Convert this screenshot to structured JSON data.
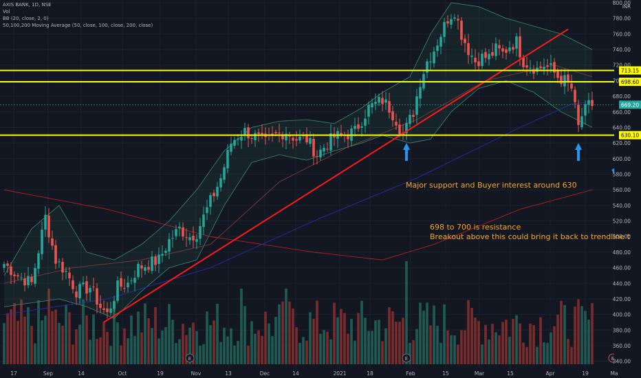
{
  "legend": {
    "symbol": "AXIS BANK, 1D, NSE",
    "volume": "Vol",
    "bb": "BB (20, close, 2, 0)",
    "ma": "50,100,200 Moving Average (50, close, 100, close, 200, close)"
  },
  "annotations": {
    "support": "Major support and Buyer interest around 630",
    "resistance_1": "698 to 700 is resistance",
    "resistance_2": "Breakout above this could bring it back to trendline t"
  },
  "colors": {
    "background": "#131722",
    "up": "#26a69a",
    "down": "#ef5350",
    "level": "#ffff00",
    "trendline": "#ff1a1a",
    "annotation": "#f5a623",
    "arrow": "#2196f3",
    "bb": "#3a8a6e",
    "ma50": "#7a3a3a",
    "ma100": "#2a2aa8",
    "ma200": "#b02020",
    "last_price": "#26a69a"
  },
  "chart_data": {
    "type": "candlestick",
    "ylim": [
      330,
      800
    ],
    "y_ticks": [
      340,
      360,
      380,
      400,
      420,
      440,
      460,
      480,
      500,
      520,
      540,
      560,
      580,
      600,
      620,
      640,
      660,
      680,
      700,
      720,
      740,
      760,
      780,
      800
    ],
    "x_ticks": [
      "17",
      "Sep",
      "14",
      "Oct",
      "19",
      "Nov",
      "13",
      "Dec",
      "14",
      "2021",
      "18",
      "Feb",
      "15",
      "Mar",
      "15",
      "Apr",
      "19",
      "Ma"
    ],
    "axis_unit": "INR",
    "session_count": 172,
    "price_labels": {
      "upper_resistance": "713.15",
      "resistance": "698.60",
      "last": "669.20",
      "support": "630.10"
    },
    "levels": [
      713.15,
      698.6,
      630.1
    ],
    "last_price": 669.2,
    "trendline": {
      "from": {
        "session": 29,
        "price": 390
      },
      "to": {
        "session": 164,
        "price": 766
      }
    },
    "events": [
      {
        "session": 54,
        "label": "E"
      },
      {
        "session": 117,
        "label": "E"
      },
      {
        "session": 177,
        "label": "E"
      }
    ],
    "arrows_at_sessions": [
      117,
      167,
      179
    ],
    "anchors": [
      [
        0,
        465
      ],
      [
        4,
        450
      ],
      [
        8,
        440
      ],
      [
        12,
        525
      ],
      [
        15,
        470
      ],
      [
        18,
        455
      ],
      [
        21,
        430
      ],
      [
        25,
        435
      ],
      [
        28,
        410
      ],
      [
        30,
        400
      ],
      [
        33,
        435
      ],
      [
        36,
        440
      ],
      [
        39,
        460
      ],
      [
        42,
        465
      ],
      [
        45,
        470
      ],
      [
        48,
        495
      ],
      [
        51,
        510
      ],
      [
        54,
        500
      ],
      [
        56,
        505
      ],
      [
        60,
        545
      ],
      [
        63,
        575
      ],
      [
        66,
        620
      ],
      [
        68,
        630
      ],
      [
        70,
        635
      ],
      [
        73,
        628
      ],
      [
        76,
        620
      ],
      [
        79,
        630
      ],
      [
        82,
        635
      ],
      [
        85,
        625
      ],
      [
        88,
        625
      ],
      [
        91,
        605
      ],
      [
        93,
        615
      ],
      [
        96,
        628
      ],
      [
        99,
        630
      ],
      [
        102,
        635
      ],
      [
        104,
        650
      ],
      [
        106,
        665
      ],
      [
        108,
        670
      ],
      [
        110,
        675
      ],
      [
        112,
        665
      ],
      [
        114,
        650
      ],
      [
        116,
        630
      ],
      [
        117,
        640
      ],
      [
        119,
        660
      ],
      [
        121,
        700
      ],
      [
        123,
        725
      ],
      [
        125,
        740
      ],
      [
        127,
        760
      ],
      [
        129,
        780
      ],
      [
        131,
        790
      ],
      [
        133,
        760
      ],
      [
        135,
        740
      ],
      [
        137,
        725
      ],
      [
        139,
        730
      ],
      [
        141,
        730
      ],
      [
        143,
        740
      ],
      [
        145,
        735
      ],
      [
        147,
        745
      ],
      [
        149,
        750
      ],
      [
        151,
        725
      ],
      [
        153,
        720
      ],
      [
        155,
        715
      ],
      [
        157,
        720
      ],
      [
        159,
        715
      ],
      [
        161,
        705
      ],
      [
        163,
        700
      ],
      [
        165,
        690
      ],
      [
        167,
        640
      ],
      [
        168,
        655
      ],
      [
        170,
        668
      ],
      [
        171,
        669
      ]
    ],
    "bb_upper_anchors": [
      [
        0,
        450
      ],
      [
        8,
        510
      ],
      [
        16,
        540
      ],
      [
        24,
        480
      ],
      [
        32,
        470
      ],
      [
        40,
        490
      ],
      [
        48,
        520
      ],
      [
        56,
        560
      ],
      [
        64,
        610
      ],
      [
        72,
        640
      ],
      [
        80,
        648
      ],
      [
        88,
        650
      ],
      [
        96,
        645
      ],
      [
        104,
        665
      ],
      [
        110,
        685
      ],
      [
        118,
        705
      ],
      [
        124,
        760
      ],
      [
        130,
        800
      ],
      [
        138,
        795
      ],
      [
        146,
        780
      ],
      [
        154,
        770
      ],
      [
        162,
        760
      ],
      [
        171,
        740
      ]
    ],
    "bb_lower_anchors": [
      [
        0,
        410
      ],
      [
        8,
        415
      ],
      [
        16,
        420
      ],
      [
        24,
        410
      ],
      [
        32,
        395
      ],
      [
        40,
        430
      ],
      [
        48,
        460
      ],
      [
        56,
        470
      ],
      [
        64,
        540
      ],
      [
        72,
        595
      ],
      [
        80,
        605
      ],
      [
        88,
        598
      ],
      [
        96,
        610
      ],
      [
        104,
        620
      ],
      [
        110,
        630
      ],
      [
        118,
        620
      ],
      [
        124,
        625
      ],
      [
        130,
        660
      ],
      [
        138,
        690
      ],
      [
        146,
        700
      ],
      [
        154,
        685
      ],
      [
        162,
        660
      ],
      [
        171,
        640
      ]
    ],
    "ma50_anchors": [
      [
        0,
        440
      ],
      [
        20,
        460
      ],
      [
        40,
        470
      ],
      [
        60,
        490
      ],
      [
        80,
        570
      ],
      [
        100,
        615
      ],
      [
        120,
        650
      ],
      [
        140,
        700
      ],
      [
        160,
        720
      ],
      [
        171,
        705
      ]
    ],
    "ma100_anchors": [
      [
        0,
        400
      ],
      [
        30,
        420
      ],
      [
        60,
        460
      ],
      [
        90,
        520
      ],
      [
        120,
        575
      ],
      [
        150,
        640
      ],
      [
        165,
        670
      ],
      [
        171,
        673
      ]
    ],
    "ma200_anchors": [
      [
        0,
        560
      ],
      [
        30,
        535
      ],
      [
        60,
        500
      ],
      [
        90,
        480
      ],
      [
        110,
        470
      ],
      [
        125,
        490
      ],
      [
        150,
        535
      ],
      [
        171,
        560
      ]
    ]
  }
}
